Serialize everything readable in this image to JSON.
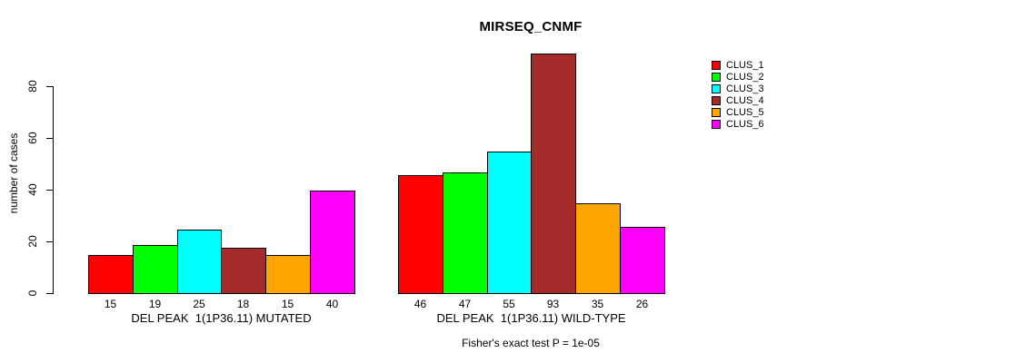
{
  "chart_data": {
    "type": "bar",
    "title": "MIRSEQ_CNMF",
    "ylabel": "number of cases",
    "xlabel": "",
    "caption": "Fisher's exact test P = 1e-05",
    "categories": [
      "DEL PEAK  1(1P36.11) MUTATED",
      "DEL PEAK  1(1P36.11) WILD-TYPE"
    ],
    "series": [
      {
        "name": "CLUS_1",
        "color": "#FF0000",
        "values": [
          15,
          46
        ]
      },
      {
        "name": "CLUS_2",
        "color": "#00FF00",
        "values": [
          19,
          47
        ]
      },
      {
        "name": "CLUS_3",
        "color": "#00FFFF",
        "values": [
          25,
          55
        ]
      },
      {
        "name": "CLUS_4",
        "color": "#A52A2A",
        "values": [
          18,
          93
        ]
      },
      {
        "name": "CLUS_5",
        "color": "#FFA500",
        "values": [
          15,
          35
        ]
      },
      {
        "name": "CLUS_6",
        "color": "#FF00FF",
        "values": [
          40,
          26
        ]
      }
    ],
    "yticks": [
      0,
      20,
      40,
      60,
      80
    ],
    "ylim": [
      0,
      93
    ],
    "bar_value_labels": true,
    "grid": false,
    "legend_position": "right",
    "axis_color": "#000000",
    "background_color": "#FFFFFF"
  }
}
